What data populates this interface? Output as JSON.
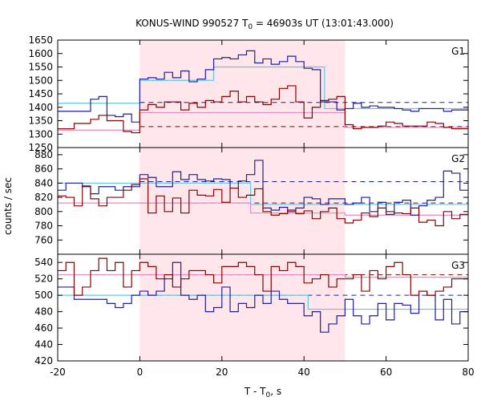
{
  "chart_data": {
    "type": "line",
    "title": "KONUS-WIND 990527 T",
    "title_sub": "0",
    "title_rest": " = 46903s UT (13:01:43.000)",
    "xlabel": "T - T",
    "xlabel_sub": "0",
    "xlabel_rest": ", s",
    "ylabel": "counts / sec",
    "xlim": [
      -20,
      80
    ],
    "xticks": [
      -20,
      0,
      20,
      40,
      60,
      80
    ],
    "highlight_interval": [
      0,
      50
    ],
    "colors": {
      "blue": "#1f1fa0",
      "red": "#8b0000",
      "cyan": "#5ec8e0",
      "pink": "#e68ac8",
      "highlight": "#ffe6ea"
    },
    "x_edges": [
      -20,
      -18,
      -16,
      -14,
      -12,
      -10,
      -8,
      -6,
      -4,
      -2,
      0,
      2,
      4,
      6,
      8,
      10,
      12,
      14,
      16,
      18,
      20,
      22,
      24,
      26,
      28,
      30,
      32,
      34,
      36,
      38,
      40,
      42,
      44,
      46,
      48,
      50,
      52,
      54,
      56,
      58,
      60,
      62,
      64,
      66,
      68,
      70,
      72,
      74,
      76,
      78,
      80
    ],
    "panels": [
      {
        "label": "G1",
        "ylim": [
          1250,
          1650
        ],
        "yticks": [
          1250,
          1300,
          1350,
          1400,
          1450,
          1500,
          1550,
          1600,
          1650
        ],
        "blue_values": [
          1385,
          1385,
          1385,
          1385,
          1430,
          1440,
          1370,
          1365,
          1375,
          1345,
          1505,
          1510,
          1505,
          1530,
          1510,
          1535,
          1495,
          1505,
          1540,
          1580,
          1585,
          1580,
          1595,
          1610,
          1565,
          1580,
          1560,
          1570,
          1590,
          1570,
          1545,
          1540,
          1420,
          1420,
          1390,
          1395,
          1415,
          1400,
          1405,
          1400,
          1400,
          1395,
          1390,
          1385,
          1395,
          1395,
          1395,
          1385,
          1390,
          1390
        ],
        "red_values": [
          1320,
          1320,
          1340,
          1340,
          1355,
          1370,
          1350,
          1350,
          1310,
          1305,
          1390,
          1410,
          1400,
          1420,
          1420,
          1390,
          1415,
          1400,
          1425,
          1420,
          1440,
          1460,
          1420,
          1440,
          1420,
          1410,
          1430,
          1470,
          1480,
          1420,
          1360,
          1400,
          1425,
          1430,
          1440,
          1335,
          1320,
          1325,
          1325,
          1330,
          1345,
          1340,
          1330,
          1330,
          1330,
          1345,
          1340,
          1325,
          1320,
          1320
        ],
        "cyan_bg": 1415,
        "cyan_steps": [
          [
            0,
            1500
          ],
          [
            18,
            1550
          ],
          [
            45,
            1395
          ]
        ],
        "pink_bg": 1315,
        "pink_steps": [
          [
            0,
            1380
          ],
          [
            50,
            1325
          ]
        ],
        "blue_dash": 1418,
        "red_dash": 1328
      },
      {
        "label": "G2",
        "ylim": [
          740,
          890
        ],
        "yticks": [
          760,
          780,
          800,
          820,
          840,
          860,
          880
        ],
        "blue_values": [
          830,
          840,
          840,
          835,
          825,
          835,
          835,
          830,
          835,
          835,
          852,
          848,
          835,
          835,
          856,
          845,
          852,
          845,
          843,
          846,
          845,
          833,
          843,
          852,
          872,
          805,
          802,
          806,
          800,
          805,
          820,
          818,
          810,
          818,
          818,
          810,
          812,
          820,
          800,
          813,
          796,
          813,
          816,
          795,
          808,
          816,
          820,
          857,
          854,
          830
        ],
        "red_values": [
          822,
          820,
          808,
          836,
          818,
          808,
          820,
          820,
          830,
          838,
          846,
          798,
          822,
          800,
          819,
          798,
          830,
          823,
          822,
          831,
          813,
          833,
          820,
          823,
          832,
          800,
          795,
          797,
          802,
          797,
          801,
          790,
          800,
          805,
          790,
          784,
          788,
          798,
          793,
          805,
          800,
          798,
          797,
          805,
          785,
          788,
          780,
          800,
          790,
          796
        ],
        "cyan_bg": 840,
        "cyan_steps": [
          [
            0,
            840
          ],
          [
            27,
            810
          ],
          [
            50,
            810
          ]
        ],
        "pink_bg": 812,
        "pink_steps": [
          [
            0,
            812
          ],
          [
            27,
            798
          ],
          [
            50,
            795
          ]
        ],
        "blue_dash": 842,
        "red_dash": 812
      },
      {
        "label": "G3",
        "ylim": [
          420,
          550
        ],
        "yticks": [
          420,
          440,
          460,
          480,
          500,
          520,
          540
        ],
        "blue_values": [
          510,
          510,
          495,
          495,
          495,
          495,
          490,
          485,
          490,
          500,
          505,
          500,
          505,
          520,
          540,
          500,
          495,
          500,
          480,
          485,
          510,
          480,
          490,
          485,
          500,
          490,
          505,
          495,
          490,
          490,
          475,
          480,
          455,
          465,
          475,
          495,
          475,
          465,
          475,
          490,
          470,
          490,
          488,
          478,
          505,
          500,
          470,
          495,
          465,
          480
        ],
        "red_values": [
          530,
          540,
          500,
          510,
          530,
          545,
          530,
          540,
          510,
          530,
          540,
          535,
          520,
          525,
          510,
          520,
          530,
          530,
          525,
          515,
          535,
          535,
          540,
          535,
          525,
          505,
          535,
          530,
          540,
          535,
          515,
          520,
          525,
          510,
          520,
          520,
          525,
          505,
          530,
          520,
          535,
          540,
          525,
          500,
          505,
          500,
          505,
          510,
          520,
          520
        ],
        "cyan_bg": 500,
        "cyan_steps": [
          [
            0,
            500
          ],
          [
            20,
            500
          ],
          [
            41,
            483
          ]
        ],
        "pink_bg": 525,
        "pink_steps": [
          [
            0,
            525
          ],
          [
            20,
            525
          ],
          [
            50,
            522
          ]
        ],
        "blue_dash": 500,
        "red_dash": 525
      }
    ]
  }
}
